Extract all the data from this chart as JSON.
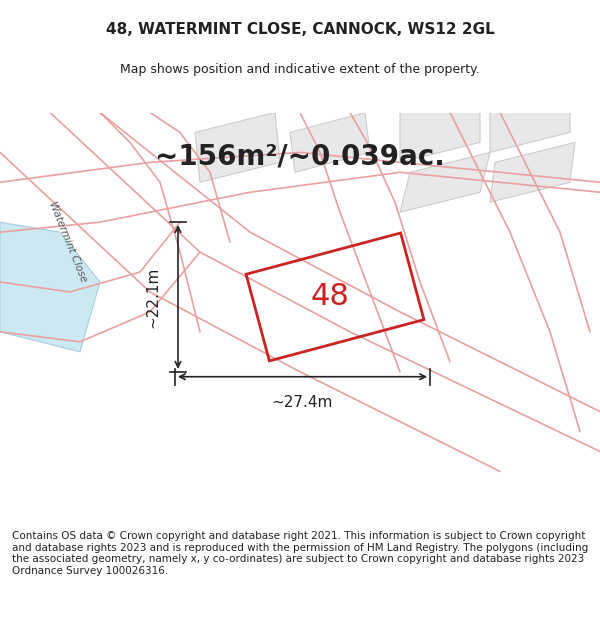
{
  "title": "48, WATERMINT CLOSE, CANNOCK, WS12 2GL",
  "subtitle": "Map shows position and indicative extent of the property.",
  "area_text": "~156m²/~0.039ac.",
  "label_48": "48",
  "dim_horiz": "~27.4m",
  "dim_vert": "~22.1m",
  "road_label": "Watermint Close",
  "footer": "Contains OS data © Crown copyright and database right 2021. This information is subject to Crown copyright and database rights 2023 and is reproduced with the permission of HM Land Registry. The polygons (including the associated geometry, namely x, y co-ordinates) are subject to Crown copyright and database rights 2023 Ordnance Survey 100026316.",
  "bg_map_color": "#f0f0f0",
  "bg_page_color": "#ffffff",
  "road_color": "#e8a0a0",
  "plot_color": "#cc2222",
  "dim_line_color": "#222222",
  "text_color": "#222222",
  "title_fontsize": 11,
  "subtitle_fontsize": 9,
  "area_fontsize": 20,
  "label_fontsize": 22,
  "dim_fontsize": 11,
  "footer_fontsize": 7.5
}
